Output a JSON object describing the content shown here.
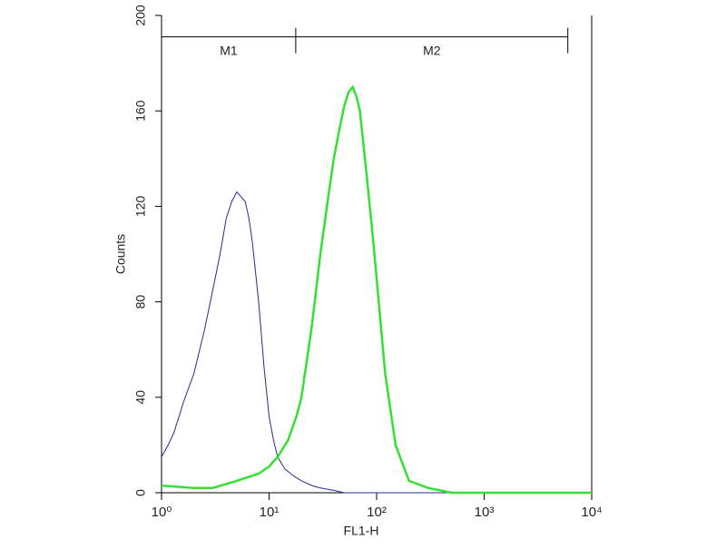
{
  "chart_data": {
    "type": "histogram-overlay",
    "x_label": "FL1-H",
    "y_label": "Counts",
    "xlim": [
      1,
      10000
    ],
    "ylim": [
      0,
      200
    ],
    "log_x": true,
    "xticks": [
      {
        "value": 1,
        "label": "10⁰"
      },
      {
        "value": 10,
        "label": "10¹"
      },
      {
        "value": 100,
        "label": "10²"
      },
      {
        "value": 1000,
        "label": "10³"
      },
      {
        "value": 10000,
        "label": "10⁴"
      }
    ],
    "yticks": [
      0,
      40,
      80,
      120,
      160,
      200
    ],
    "series": [
      {
        "color": "#2a2a8c",
        "width": 1,
        "x": [
          1,
          1.15,
          1.3,
          1.6,
          2,
          2.5,
          3,
          3.5,
          4,
          4.5,
          5,
          5.5,
          6,
          6.5,
          7,
          8,
          9,
          10,
          11,
          12,
          14,
          17,
          20,
          25,
          30,
          40,
          50,
          70,
          100,
          10000
        ],
        "values": [
          15,
          20,
          25,
          38,
          50,
          68,
          85,
          100,
          115,
          122,
          126,
          124,
          122,
          115,
          105,
          80,
          52,
          32,
          22,
          15,
          10,
          7,
          5,
          3,
          2,
          1,
          0,
          0,
          0,
          0
        ]
      },
      {
        "color": "#33e033",
        "width": 2.5,
        "x": [
          1,
          2,
          3,
          5,
          8,
          10,
          12,
          15,
          18,
          20,
          25,
          30,
          35,
          40,
          45,
          50,
          55,
          60,
          65,
          70,
          80,
          90,
          100,
          120,
          150,
          200,
          300,
          500,
          1000,
          10000
        ],
        "values": [
          3,
          2,
          2,
          5,
          8,
          11,
          15,
          22,
          32,
          40,
          70,
          100,
          122,
          140,
          152,
          162,
          168,
          170,
          166,
          160,
          135,
          112,
          90,
          50,
          20,
          5,
          2,
          0,
          0,
          0
        ]
      }
    ],
    "markers": [
      {
        "label": "M1",
        "range": [
          1,
          17.7
        ],
        "y": 191
      },
      {
        "label": "M2",
        "range": [
          17.7,
          6000
        ],
        "y": 191
      }
    ]
  }
}
